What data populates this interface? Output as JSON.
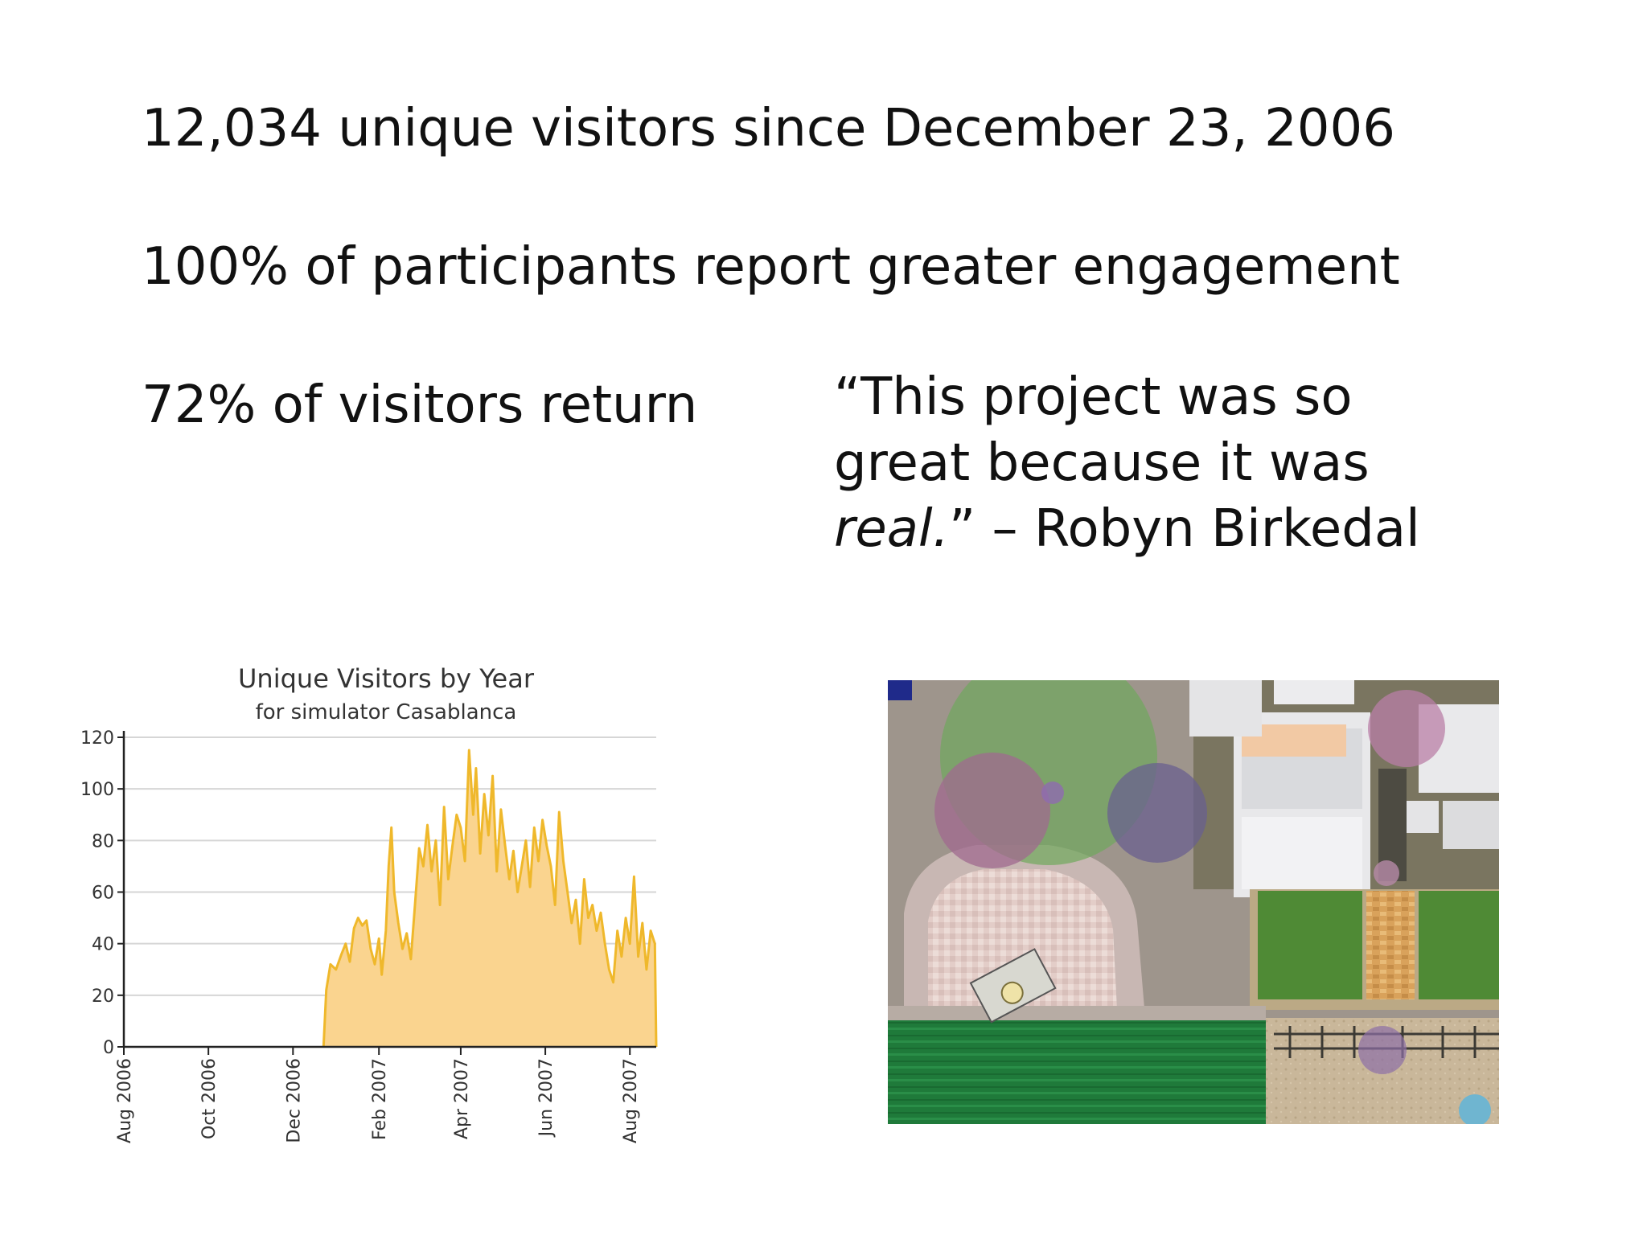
{
  "stats": {
    "line1": "12,034 unique visitors since December 23, 2006",
    "line2": "100% of participants report greater engagement",
    "line3": "72% of visitors return"
  },
  "quote": {
    "open": "“This project was so",
    "middle": "great because it was",
    "emphasis": "real.",
    "close": "” – Robyn Birkedal"
  },
  "colors": {
    "area_fill": "#fad48f",
    "line": "#efb82b",
    "grid": "#d6d6d6",
    "axis": "#222222"
  },
  "chart_data": {
    "type": "area",
    "title": "Unique Visitors by Year",
    "subtitle": "for simulator Casablanca",
    "xlabel": "",
    "ylabel": "",
    "ylim": [
      0,
      120
    ],
    "yticks": [
      0,
      20,
      40,
      60,
      80,
      100,
      120
    ],
    "grid": true,
    "x_tick_labels": [
      "Aug 2006",
      "Oct 2006",
      "Dec 2006",
      "Feb 2007",
      "Apr 2007",
      "Jun 2007",
      "Aug 2007"
    ],
    "x_tick_dates": [
      "2006-08-01",
      "2006-10-01",
      "2006-12-01",
      "2007-02-01",
      "2007-04-01",
      "2007-06-01",
      "2007-08-01"
    ],
    "x_range": [
      "2006-08-01",
      "2007-08-20"
    ],
    "series": [
      {
        "data_start": "2006-12-23",
        "data_end": "2007-08-20",
        "points": [
          [
            "2006-12-23",
            0
          ],
          [
            "2006-12-25",
            22
          ],
          [
            "2006-12-28",
            32
          ],
          [
            "2007-01-01",
            30
          ],
          [
            "2007-01-05",
            36
          ],
          [
            "2007-01-08",
            40
          ],
          [
            "2007-01-11",
            33
          ],
          [
            "2007-01-14",
            46
          ],
          [
            "2007-01-17",
            50
          ],
          [
            "2007-01-20",
            47
          ],
          [
            "2007-01-23",
            49
          ],
          [
            "2007-01-26",
            38
          ],
          [
            "2007-01-29",
            32
          ],
          [
            "2007-02-01",
            42
          ],
          [
            "2007-02-03",
            28
          ],
          [
            "2007-02-06",
            45
          ],
          [
            "2007-02-08",
            70
          ],
          [
            "2007-02-10",
            85
          ],
          [
            "2007-02-12",
            60
          ],
          [
            "2007-02-15",
            48
          ],
          [
            "2007-02-18",
            38
          ],
          [
            "2007-02-21",
            44
          ],
          [
            "2007-02-24",
            34
          ],
          [
            "2007-02-27",
            55
          ],
          [
            "2007-03-02",
            77
          ],
          [
            "2007-03-05",
            70
          ],
          [
            "2007-03-08",
            86
          ],
          [
            "2007-03-11",
            68
          ],
          [
            "2007-03-14",
            80
          ],
          [
            "2007-03-17",
            55
          ],
          [
            "2007-03-20",
            93
          ],
          [
            "2007-03-23",
            65
          ],
          [
            "2007-03-26",
            78
          ],
          [
            "2007-03-29",
            90
          ],
          [
            "2007-04-01",
            85
          ],
          [
            "2007-04-04",
            72
          ],
          [
            "2007-04-07",
            115
          ],
          [
            "2007-04-10",
            90
          ],
          [
            "2007-04-12",
            108
          ],
          [
            "2007-04-15",
            75
          ],
          [
            "2007-04-18",
            98
          ],
          [
            "2007-04-21",
            82
          ],
          [
            "2007-04-24",
            105
          ],
          [
            "2007-04-27",
            68
          ],
          [
            "2007-04-30",
            92
          ],
          [
            "2007-05-03",
            78
          ],
          [
            "2007-05-06",
            65
          ],
          [
            "2007-05-09",
            76
          ],
          [
            "2007-05-12",
            60
          ],
          [
            "2007-05-15",
            70
          ],
          [
            "2007-05-18",
            80
          ],
          [
            "2007-05-21",
            62
          ],
          [
            "2007-05-24",
            85
          ],
          [
            "2007-05-27",
            72
          ],
          [
            "2007-05-30",
            88
          ],
          [
            "2007-06-02",
            78
          ],
          [
            "2007-06-05",
            70
          ],
          [
            "2007-06-08",
            55
          ],
          [
            "2007-06-11",
            91
          ],
          [
            "2007-06-14",
            72
          ],
          [
            "2007-06-17",
            60
          ],
          [
            "2007-06-20",
            48
          ],
          [
            "2007-06-23",
            57
          ],
          [
            "2007-06-26",
            40
          ],
          [
            "2007-06-29",
            65
          ],
          [
            "2007-07-02",
            50
          ],
          [
            "2007-07-05",
            55
          ],
          [
            "2007-07-08",
            45
          ],
          [
            "2007-07-11",
            52
          ],
          [
            "2007-07-14",
            40
          ],
          [
            "2007-07-17",
            30
          ],
          [
            "2007-07-20",
            25
          ],
          [
            "2007-07-23",
            45
          ],
          [
            "2007-07-26",
            35
          ],
          [
            "2007-07-29",
            50
          ],
          [
            "2007-08-01",
            40
          ],
          [
            "2007-08-04",
            66
          ],
          [
            "2007-08-07",
            35
          ],
          [
            "2007-08-10",
            48
          ],
          [
            "2007-08-13",
            30
          ],
          [
            "2007-08-16",
            45
          ],
          [
            "2007-08-19",
            40
          ],
          [
            "2007-08-20",
            0
          ]
        ]
      }
    ]
  }
}
